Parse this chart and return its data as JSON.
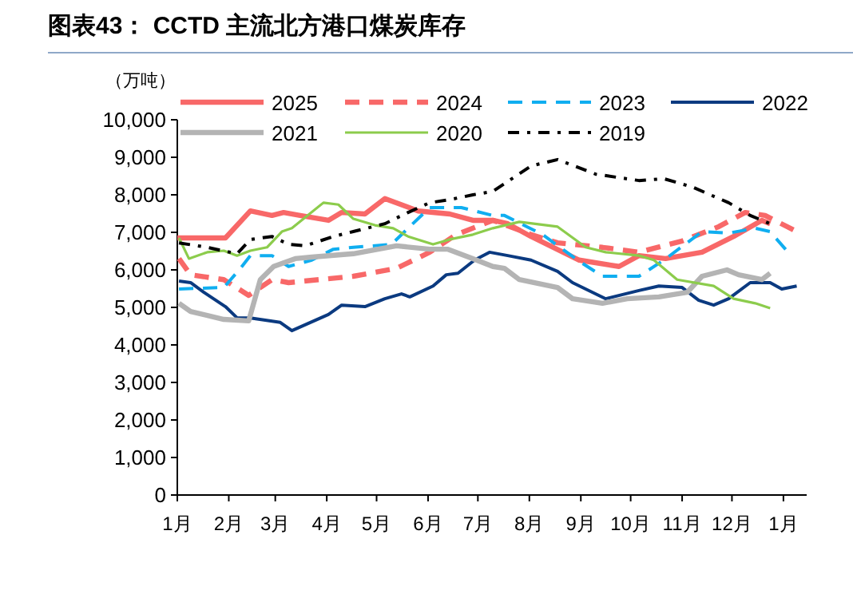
{
  "chart_data": {
    "type": "line",
    "title": "图表43：  CCTD 主流北方港口煤炭库存",
    "ylabel": "（万吨）",
    "xlim": [
      "2025-01-01",
      "2026-01-15"
    ],
    "xticks": [
      {
        "value": "2025-01-01",
        "label": "1月"
      },
      {
        "value": "2025-02-01",
        "label": "2月"
      },
      {
        "value": "2025-03-01",
        "label": "3月"
      },
      {
        "value": "2025-04-01",
        "label": "4月"
      },
      {
        "value": "2025-05-01",
        "label": "5月"
      },
      {
        "value": "2025-06-01",
        "label": "6月"
      },
      {
        "value": "2025-07-01",
        "label": "7月"
      },
      {
        "value": "2025-08-01",
        "label": "8月"
      },
      {
        "value": "2025-09-01",
        "label": "9月"
      },
      {
        "value": "2025-10-01",
        "label": "10月"
      },
      {
        "value": "2025-11-01",
        "label": "11月"
      },
      {
        "value": "2025-12-01",
        "label": "12月"
      },
      {
        "value": "2026-01-01",
        "label": "1月"
      }
    ],
    "ylim": [
      0,
      10000
    ],
    "yticks": [
      0,
      {
        "value": 1000,
        "label": "1,000"
      },
      {
        "value": 2000,
        "label": "2,000"
      },
      {
        "value": 3000,
        "label": "3,000"
      },
      {
        "value": 4000,
        "label": "4,000"
      },
      {
        "value": 5000,
        "label": "5,000"
      },
      {
        "value": 6000,
        "label": "6,000"
      },
      {
        "value": 7000,
        "label": "7,000"
      },
      {
        "value": 8000,
        "label": "8,000"
      },
      {
        "value": 9000,
        "label": "9,000"
      },
      {
        "value": 10000,
        "label": "10,000"
      }
    ],
    "grid": false,
    "legend": "top",
    "marker": "none",
    "series": [
      {
        "name": "2025",
        "color": "#f86868",
        "line_style": "solid",
        "x": [
          "2025-01-01",
          "2025-01-30",
          "2025-02-14",
          "2025-02-27",
          "2025-03-06",
          "2025-03-16",
          "2025-04-02",
          "2025-04-10",
          "2025-04-24",
          "2025-05-06",
          "2025-05-26",
          "2025-06-14",
          "2025-06-28",
          "2025-07-10",
          "2025-07-19",
          "2025-08-02",
          "2025-08-31",
          "2025-09-24",
          "2025-10-06",
          "2025-10-22",
          "2025-11-13",
          "2025-12-02",
          "2025-12-19",
          "2025-12-24"
        ],
        "values": [
          6850,
          6850,
          7570,
          7450,
          7530,
          7450,
          7320,
          7530,
          7490,
          7900,
          7570,
          7490,
          7320,
          7320,
          7230,
          6890,
          6260,
          6090,
          6380,
          6300,
          6470,
          6890,
          7320,
          7230
        ]
      },
      {
        "name": "2024",
        "color": "#f86868",
        "line_style": "dashed",
        "x": [
          "2025-01-02",
          "2025-01-09",
          "2025-01-29",
          "2025-02-13",
          "2025-02-27",
          "2025-03-09",
          "2025-04-17",
          "2025-05-13",
          "2025-06-02",
          "2025-06-18",
          "2025-07-10",
          "2025-08-02",
          "2025-08-18",
          "2025-09-14",
          "2025-10-06",
          "2025-11-01",
          "2025-11-23",
          "2025-12-09",
          "2025-12-21",
          "2026-01-09"
        ],
        "values": [
          6300,
          5870,
          5740,
          5320,
          5740,
          5660,
          5830,
          6040,
          6470,
          6940,
          7320,
          6940,
          6720,
          6600,
          6470,
          6770,
          7150,
          7530,
          7450,
          7020
        ]
      },
      {
        "name": "2023",
        "color": "#10aef0",
        "line_style": "dashed",
        "x": [
          "2025-01-02",
          "2025-01-29",
          "2025-02-08",
          "2025-02-14",
          "2025-02-27",
          "2025-03-09",
          "2025-03-23",
          "2025-04-05",
          "2025-04-17",
          "2025-05-10",
          "2025-05-20",
          "2025-06-02",
          "2025-06-21",
          "2025-07-10",
          "2025-07-17",
          "2025-08-09",
          "2025-08-30",
          "2025-09-14",
          "2025-10-06",
          "2025-10-21",
          "2025-11-13",
          "2025-11-29",
          "2025-12-15",
          "2025-12-24",
          "2026-01-03"
        ],
        "values": [
          5490,
          5530,
          6040,
          6380,
          6380,
          6090,
          6260,
          6550,
          6600,
          6680,
          7110,
          7660,
          7660,
          7450,
          7450,
          6940,
          6260,
          5830,
          5830,
          6260,
          7020,
          6980,
          7110,
          7020,
          6510
        ]
      },
      {
        "name": "2022",
        "color": "#0b3a80",
        "line_style": "solid",
        "x": [
          "2025-01-02",
          "2025-01-09",
          "2025-01-17",
          "2025-01-30",
          "2025-02-06",
          "2025-02-14",
          "2025-03-04",
          "2025-03-11",
          "2025-04-02",
          "2025-04-10",
          "2025-04-24",
          "2025-05-06",
          "2025-05-16",
          "2025-05-21",
          "2025-06-04",
          "2025-06-12",
          "2025-06-19",
          "2025-06-29",
          "2025-07-08",
          "2025-07-19",
          "2025-08-02",
          "2025-08-18",
          "2025-08-27",
          "2025-09-16",
          "2025-10-06",
          "2025-10-18",
          "2025-11-01",
          "2025-11-11",
          "2025-11-20",
          "2025-11-29",
          "2025-12-12",
          "2025-12-24",
          "2025-12-31",
          "2026-01-09"
        ],
        "values": [
          5700,
          5660,
          5400,
          5020,
          4720,
          4720,
          4600,
          4380,
          4810,
          5060,
          5020,
          5230,
          5360,
          5280,
          5570,
          5870,
          5910,
          6260,
          6470,
          6380,
          6260,
          5960,
          5660,
          5230,
          5450,
          5570,
          5530,
          5190,
          5060,
          5230,
          5660,
          5660,
          5490,
          5570
        ]
      },
      {
        "name": "2021",
        "color": "#b4b4b4",
        "line_style": "solid",
        "x": [
          "2025-01-02",
          "2025-01-09",
          "2025-01-29",
          "2025-02-13",
          "2025-02-20",
          "2025-02-28",
          "2025-03-13",
          "2025-03-23",
          "2025-04-17",
          "2025-05-13",
          "2025-06-02",
          "2025-06-13",
          "2025-06-28",
          "2025-07-10",
          "2025-07-17",
          "2025-07-26",
          "2025-08-18",
          "2025-08-27",
          "2025-09-14",
          "2025-09-29",
          "2025-10-18",
          "2025-11-04",
          "2025-11-13",
          "2025-11-28",
          "2025-12-05",
          "2025-12-19",
          "2025-12-24"
        ],
        "values": [
          5110,
          4890,
          4680,
          4640,
          5740,
          6090,
          6300,
          6340,
          6430,
          6640,
          6550,
          6550,
          6300,
          6090,
          6040,
          5740,
          5530,
          5230,
          5110,
          5230,
          5280,
          5400,
          5830,
          6000,
          5870,
          5740,
          5910
        ]
      },
      {
        "name": "2020",
        "color": "#8ccc4c",
        "line_style": "solid",
        "x": [
          "2025-01-02",
          "2025-01-08",
          "2025-01-19",
          "2025-01-29",
          "2025-02-06",
          "2025-02-14",
          "2025-02-24",
          "2025-03-05",
          "2025-03-11",
          "2025-03-30",
          "2025-04-08",
          "2025-04-17",
          "2025-04-30",
          "2025-05-11",
          "2025-05-20",
          "2025-06-04",
          "2025-06-14",
          "2025-06-28",
          "2025-07-10",
          "2025-07-26",
          "2025-08-18",
          "2025-09-04",
          "2025-09-16",
          "2025-10-06",
          "2025-10-15",
          "2025-10-29",
          "2025-11-20",
          "2025-12-02",
          "2025-12-15",
          "2025-12-24"
        ],
        "values": [
          6850,
          6300,
          6470,
          6510,
          6380,
          6510,
          6600,
          7020,
          7110,
          7790,
          7740,
          7360,
          7190,
          7110,
          6890,
          6680,
          6810,
          6940,
          7110,
          7280,
          7150,
          6600,
          6470,
          6380,
          6260,
          5740,
          5570,
          5230,
          5110,
          4980
        ]
      },
      {
        "name": "2019",
        "color": "#000000",
        "line_style": "dashdot",
        "x": [
          "2025-01-02",
          "2025-01-19",
          "2025-02-06",
          "2025-02-14",
          "2025-02-27",
          "2025-03-09",
          "2025-03-19",
          "2025-04-05",
          "2025-04-17",
          "2025-05-06",
          "2025-05-20",
          "2025-06-02",
          "2025-06-14",
          "2025-06-28",
          "2025-07-10",
          "2025-08-02",
          "2025-08-18",
          "2025-09-10",
          "2025-10-06",
          "2025-10-21",
          "2025-11-07",
          "2025-11-29",
          "2025-12-12",
          "2025-12-24"
        ],
        "values": [
          6720,
          6600,
          6430,
          6810,
          6890,
          6680,
          6640,
          6890,
          7020,
          7230,
          7530,
          7790,
          7870,
          8000,
          8090,
          8770,
          8940,
          8550,
          8380,
          8430,
          8210,
          7790,
          7450,
          7230
        ]
      }
    ]
  }
}
